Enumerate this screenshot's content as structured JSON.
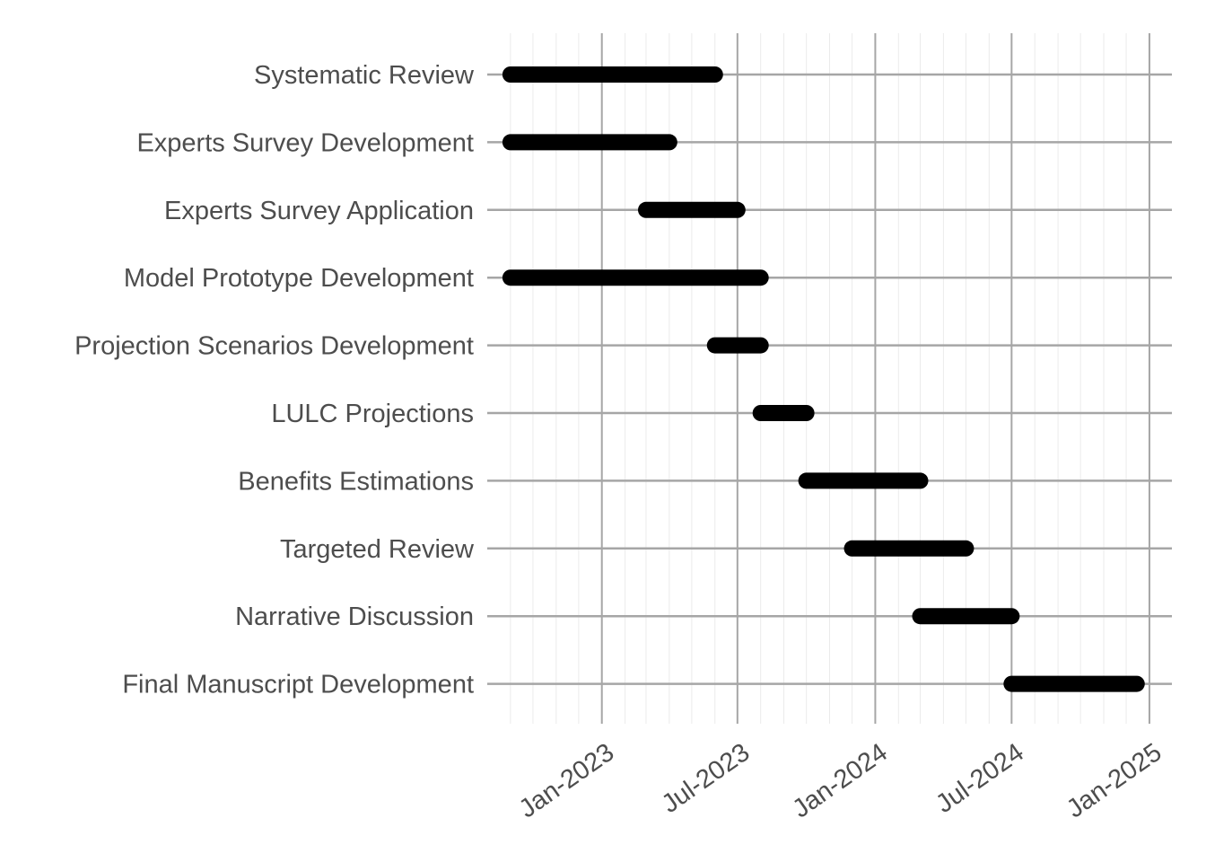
{
  "chart_data": {
    "type": "gantt",
    "title": "",
    "xlabel": "",
    "ylabel": "",
    "grid": true,
    "legend": "none",
    "xlim": [
      "2022-08-01",
      "2025-01-31"
    ],
    "x_ticks": [
      {
        "date": "2023-01-01",
        "label": "Jan-2023"
      },
      {
        "date": "2023-07-01",
        "label": "Jul-2023"
      },
      {
        "date": "2024-01-01",
        "label": "Jan-2024"
      },
      {
        "date": "2024-07-01",
        "label": "Jul-2024"
      },
      {
        "date": "2025-01-01",
        "label": "Jan-2025"
      }
    ],
    "bar_color": "#000000",
    "grid_major_color": "#a6a6a6",
    "grid_minor_color": "#ebebeb",
    "tasks": [
      {
        "name": "Systematic Review",
        "start": "2022-09-01",
        "end": "2023-06-01"
      },
      {
        "name": "Experts Survey Development",
        "start": "2022-09-01",
        "end": "2023-04-01"
      },
      {
        "name": "Experts Survey Application",
        "start": "2023-03-01",
        "end": "2023-07-01"
      },
      {
        "name": "Model Prototype Development",
        "start": "2022-09-01",
        "end": "2023-08-01"
      },
      {
        "name": "Projection Scenarios Development",
        "start": "2023-06-01",
        "end": "2023-08-01"
      },
      {
        "name": "LULC Projections",
        "start": "2023-08-01",
        "end": "2023-10-01"
      },
      {
        "name": "Benefits Estimations",
        "start": "2023-10-01",
        "end": "2024-03-01"
      },
      {
        "name": "Targeted Review",
        "start": "2023-12-01",
        "end": "2024-05-01"
      },
      {
        "name": "Narrative Discussion",
        "start": "2024-03-01",
        "end": "2024-07-01"
      },
      {
        "name": "Final Manuscript Development",
        "start": "2024-07-01",
        "end": "2024-12-15"
      }
    ]
  }
}
